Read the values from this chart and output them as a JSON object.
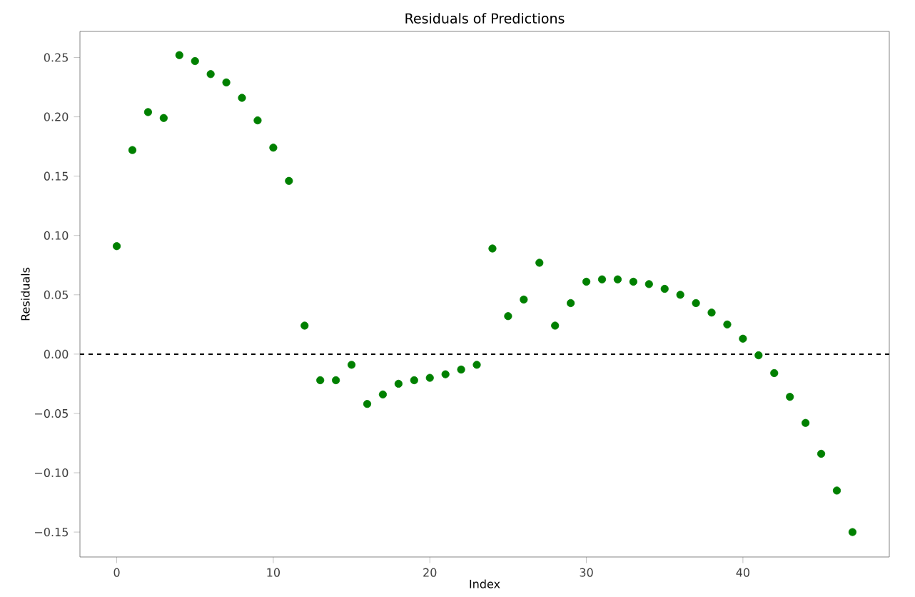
{
  "chart_data": {
    "type": "scatter",
    "title": "Residuals of Predictions",
    "xlabel": "Index",
    "ylabel": "Residuals",
    "x": [
      0,
      1,
      2,
      3,
      4,
      5,
      6,
      7,
      8,
      9,
      10,
      11,
      12,
      13,
      14,
      15,
      16,
      17,
      18,
      19,
      20,
      21,
      22,
      23,
      24,
      25,
      26,
      27,
      28,
      29,
      30,
      31,
      32,
      33,
      34,
      35,
      36,
      37,
      38,
      39,
      40,
      41,
      42,
      43,
      44,
      45,
      46,
      47
    ],
    "values": [
      0.091,
      0.172,
      0.204,
      0.199,
      0.252,
      0.247,
      0.236,
      0.229,
      0.216,
      0.197,
      0.174,
      0.146,
      0.024,
      -0.022,
      -0.022,
      -0.009,
      -0.042,
      -0.034,
      -0.025,
      -0.022,
      -0.02,
      -0.017,
      -0.013,
      -0.009,
      0.089,
      0.032,
      0.046,
      0.077,
      0.024,
      0.043,
      0.061,
      0.063,
      0.063,
      0.061,
      0.059,
      0.055,
      0.05,
      0.043,
      0.035,
      0.025,
      0.013,
      -0.001,
      -0.016,
      -0.036,
      -0.058,
      -0.084,
      -0.115,
      -0.15
    ],
    "color": "#008000",
    "marker": "circle",
    "xlim": [
      -2.35,
      49.35
    ],
    "ylim": [
      -0.171,
      0.272
    ],
    "xticks": [
      0,
      10,
      20,
      30,
      40
    ],
    "yticks": [
      {
        "value": -0.15,
        "label": "−0.15"
      },
      {
        "value": -0.1,
        "label": "−0.10"
      },
      {
        "value": -0.05,
        "label": "−0.05"
      },
      {
        "value": 0,
        "label": "0.00"
      },
      {
        "value": 0.05,
        "label": "0.05"
      },
      {
        "value": 0.1,
        "label": "0.10"
      },
      {
        "value": 0.15,
        "label": "0.15"
      },
      {
        "value": 0.2,
        "label": "0.20"
      },
      {
        "value": 0.25,
        "label": "0.25"
      }
    ],
    "ref_lines": [
      {
        "axis": "y",
        "value": 0,
        "color": "#000000",
        "line_style": "dashed"
      }
    ],
    "grid": false
  }
}
